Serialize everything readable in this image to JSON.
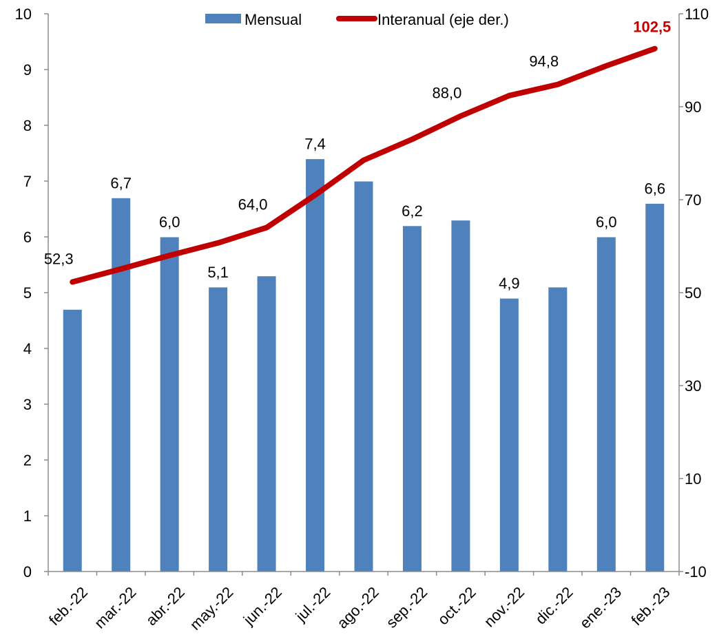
{
  "chart_data": {
    "type": "bar",
    "title": "",
    "xlabel": "",
    "ylabel": "",
    "categories": [
      "feb.-22",
      "mar.-22",
      "abr.-22",
      "may.-22",
      "jun.-22",
      "jul.-22",
      "ago.-22",
      "sep.-22",
      "oct.-22",
      "nov.-22",
      "dic.-22",
      "ene.-23",
      "feb.-23"
    ],
    "series": [
      {
        "name": "Mensual",
        "type": "bar",
        "axis": "left",
        "color": "#4f81bd",
        "values": [
          4.7,
          6.7,
          6.0,
          5.1,
          5.3,
          7.4,
          7.0,
          6.2,
          6.3,
          4.9,
          5.1,
          6.0,
          6.6
        ],
        "data_labels": [
          "",
          "6,7",
          "6,0",
          "5,1",
          "",
          "7,4",
          "",
          "6,2",
          "",
          "4,9",
          "",
          "6,0",
          "6,6"
        ]
      },
      {
        "name": "Interanual (eje der.)",
        "type": "line",
        "axis": "right",
        "color": "#c00000",
        "values": [
          52.3,
          55.1,
          58.0,
          60.7,
          64.0,
          71.0,
          78.5,
          83.0,
          88.0,
          92.4,
          94.8,
          98.8,
          102.5
        ],
        "data_labels": [
          "52,3",
          "",
          "",
          "",
          "64,0",
          "",
          "",
          "",
          "88,0",
          "",
          "94,8",
          "",
          "102,5"
        ]
      }
    ],
    "y_left": {
      "min": 0,
      "max": 10,
      "ticks": [
        "0",
        "1",
        "2",
        "3",
        "4",
        "5",
        "6",
        "7",
        "8",
        "9",
        "10"
      ],
      "tick_values": [
        0,
        1,
        2,
        3,
        4,
        5,
        6,
        7,
        8,
        9,
        10
      ]
    },
    "y_right": {
      "min": -10,
      "max": 110,
      "ticks": [
        "-10",
        "10",
        "30",
        "50",
        "70",
        "90",
        "110"
      ],
      "tick_values": [
        -10,
        10,
        30,
        50,
        70,
        90,
        110
      ]
    },
    "grid": false,
    "legend_position": "top"
  }
}
